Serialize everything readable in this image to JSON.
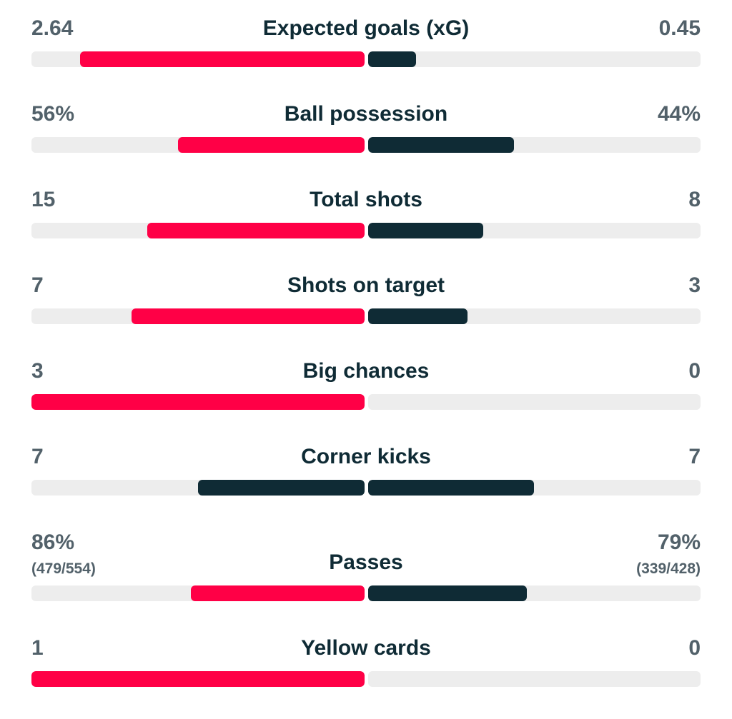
{
  "colors": {
    "highlight": "#ff0046",
    "dark": "#0f2b35",
    "track": "#ededed"
  },
  "stats": [
    {
      "label": "Expected goals (xG)",
      "home": "2.64",
      "away": "0.45",
      "home_share": 0.854,
      "away_share": 0.146
    },
    {
      "label": "Ball possession",
      "home": "56%",
      "away": "44%",
      "home_share": 0.56,
      "away_share": 0.44
    },
    {
      "label": "Total shots",
      "home": "15",
      "away": "8",
      "home_share": 0.652,
      "away_share": 0.348
    },
    {
      "label": "Shots on target",
      "home": "7",
      "away": "3",
      "home_share": 0.7,
      "away_share": 0.3
    },
    {
      "label": "Big chances",
      "home": "3",
      "away": "0",
      "home_share": 1.0,
      "away_share": 0.0
    },
    {
      "label": "Corner kicks",
      "home": "7",
      "away": "7",
      "home_share": 0.5,
      "away_share": 0.5
    },
    {
      "label": "Passes",
      "home": "86%",
      "home_sub": "(479/554)",
      "away": "79%",
      "away_sub": "(339/428)",
      "home_share": 0.521,
      "away_share": 0.479
    },
    {
      "label": "Yellow cards",
      "home": "1",
      "away": "0",
      "home_share": 1.0,
      "away_share": 0.0
    }
  ]
}
